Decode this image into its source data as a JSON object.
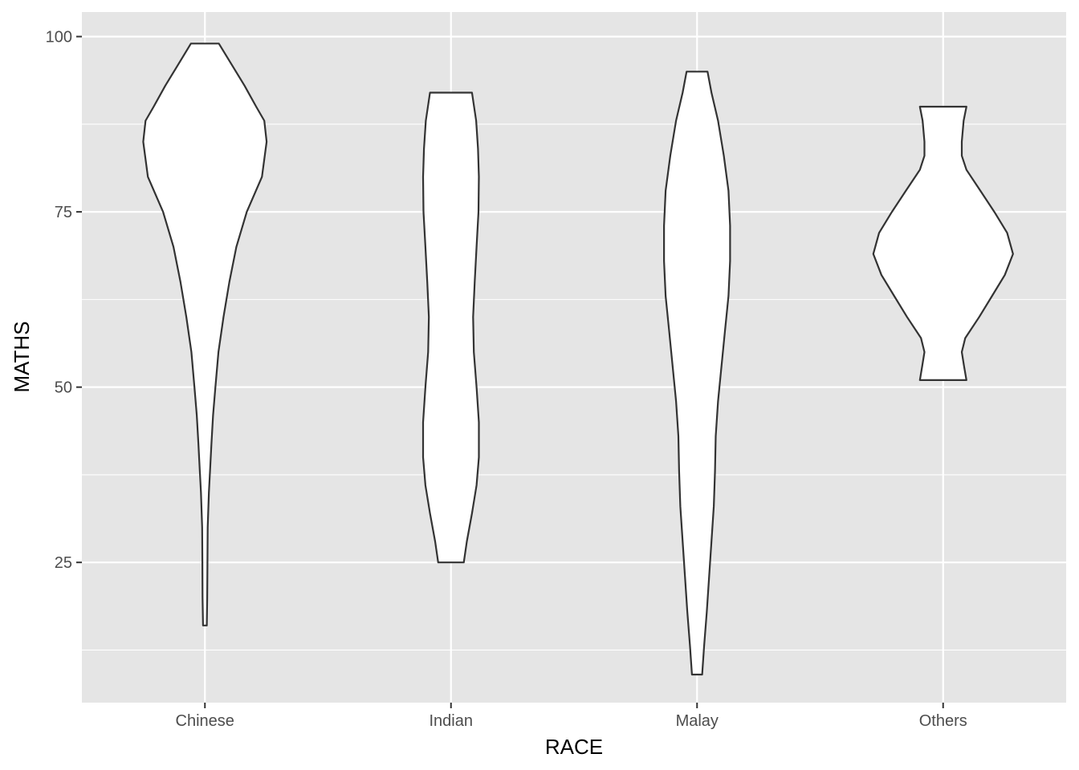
{
  "chart_data": {
    "type": "violin",
    "xlabel": "RACE",
    "ylabel": "MATHS",
    "ylim": [
      5,
      103.5
    ],
    "yticks": [
      25,
      50,
      75,
      100
    ],
    "yminor": [
      12.5,
      37.5,
      62.5,
      87.5
    ],
    "grid": true,
    "legend": "none",
    "colors": {
      "panel": "#e5e5e5",
      "grid": "#ffffff",
      "violin_fill": "#ffffff",
      "violin_outline": "#333333"
    },
    "categories": [
      "Chinese",
      "Indian",
      "Malay",
      "Others"
    ],
    "violins": [
      {
        "category": "Chinese",
        "min": 16,
        "max": 99,
        "profile": [
          [
            16,
            0.08
          ],
          [
            20,
            0.1
          ],
          [
            25,
            0.11
          ],
          [
            30,
            0.12
          ],
          [
            35,
            0.17
          ],
          [
            38,
            0.22
          ],
          [
            42,
            0.28
          ],
          [
            46,
            0.35
          ],
          [
            50,
            0.45
          ],
          [
            55,
            0.58
          ],
          [
            60,
            0.8
          ],
          [
            65,
            1.05
          ],
          [
            70,
            1.35
          ],
          [
            75,
            1.8
          ],
          [
            80,
            2.45
          ],
          [
            85,
            2.65
          ],
          [
            88,
            2.55
          ],
          [
            90,
            2.2
          ],
          [
            93,
            1.7
          ],
          [
            96,
            1.15
          ],
          [
            99,
            0.6
          ]
        ]
      },
      {
        "category": "Indian",
        "min": 25,
        "max": 92,
        "profile": [
          [
            25,
            0.55
          ],
          [
            28,
            0.68
          ],
          [
            32,
            0.9
          ],
          [
            36,
            1.1
          ],
          [
            40,
            1.2
          ],
          [
            45,
            1.2
          ],
          [
            50,
            1.1
          ],
          [
            55,
            0.98
          ],
          [
            60,
            0.95
          ],
          [
            65,
            1.02
          ],
          [
            70,
            1.1
          ],
          [
            75,
            1.18
          ],
          [
            80,
            1.2
          ],
          [
            84,
            1.16
          ],
          [
            88,
            1.08
          ],
          [
            92,
            0.9
          ]
        ]
      },
      {
        "category": "Malay",
        "min": 9,
        "max": 95,
        "profile": [
          [
            9,
            0.22
          ],
          [
            13,
            0.3
          ],
          [
            18,
            0.42
          ],
          [
            23,
            0.52
          ],
          [
            28,
            0.62
          ],
          [
            33,
            0.72
          ],
          [
            38,
            0.77
          ],
          [
            43,
            0.8
          ],
          [
            48,
            0.9
          ],
          [
            53,
            1.05
          ],
          [
            58,
            1.2
          ],
          [
            63,
            1.35
          ],
          [
            68,
            1.42
          ],
          [
            73,
            1.42
          ],
          [
            78,
            1.35
          ],
          [
            83,
            1.15
          ],
          [
            88,
            0.9
          ],
          [
            92,
            0.62
          ],
          [
            95,
            0.45
          ]
        ]
      },
      {
        "category": "Others",
        "min": 51,
        "max": 90,
        "profile": [
          [
            51,
            1.0
          ],
          [
            53,
            0.9
          ],
          [
            55,
            0.8
          ],
          [
            57,
            0.95
          ],
          [
            60,
            1.55
          ],
          [
            63,
            2.1
          ],
          [
            66,
            2.65
          ],
          [
            69,
            3.0
          ],
          [
            72,
            2.75
          ],
          [
            75,
            2.2
          ],
          [
            78,
            1.6
          ],
          [
            81,
            1.0
          ],
          [
            83,
            0.8
          ],
          [
            85,
            0.8
          ],
          [
            88,
            0.88
          ],
          [
            90,
            1.0
          ]
        ]
      }
    ]
  }
}
